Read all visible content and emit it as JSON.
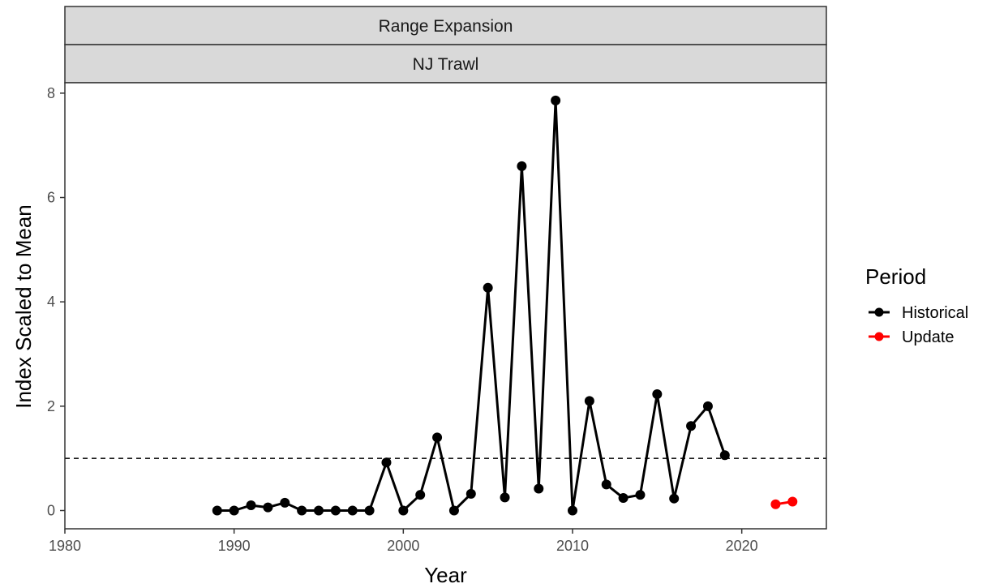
{
  "chart_data": {
    "type": "line",
    "facets": [
      "Range Expansion",
      "NJ Trawl"
    ],
    "xlabel": "Year",
    "ylabel": "Index Scaled to Mean",
    "xlim": [
      1980,
      2025
    ],
    "ylim": [
      -0.35,
      8.2
    ],
    "xticks": [
      1980,
      1990,
      2000,
      2010,
      2020
    ],
    "yticks": [
      0,
      2,
      4,
      6,
      8
    ],
    "reference_line": {
      "y": 1,
      "style": "dashed"
    },
    "legend": {
      "title": "Period",
      "position": "right"
    },
    "series": [
      {
        "name": "Historical",
        "color": "#000000",
        "x": [
          1989,
          1990,
          1991,
          1992,
          1993,
          1994,
          1995,
          1996,
          1997,
          1998,
          1999,
          2000,
          2001,
          2002,
          2003,
          2004,
          2005,
          2006,
          2007,
          2008,
          2009,
          2010,
          2011,
          2012,
          2013,
          2014,
          2015,
          2016,
          2017,
          2018,
          2019
        ],
        "y": [
          0,
          0,
          0.1,
          0.06,
          0.15,
          0,
          0,
          0,
          0,
          0,
          0.92,
          0,
          0.3,
          1.4,
          0,
          0.32,
          4.27,
          0.25,
          6.6,
          0.42,
          7.86,
          0,
          2.1,
          0.5,
          0.24,
          0.3,
          2.23,
          0.23,
          1.62,
          2.0,
          1.06
        ]
      },
      {
        "name": "Update",
        "color": "#ff0000",
        "x": [
          2022,
          2023
        ],
        "y": [
          0.12,
          0.17
        ]
      }
    ]
  }
}
